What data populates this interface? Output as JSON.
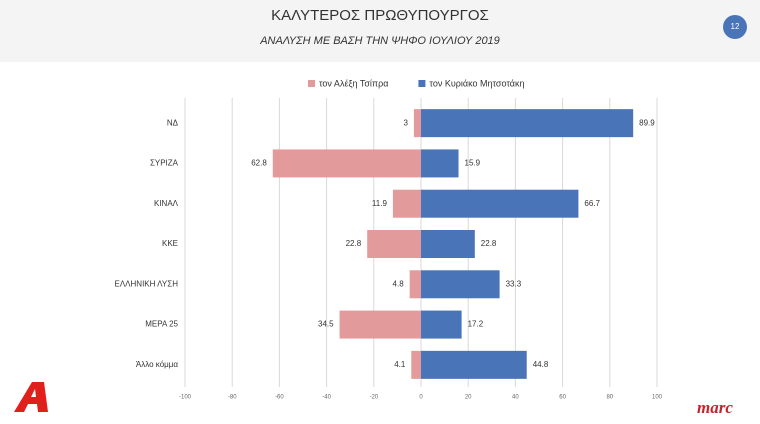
{
  "chart_data": {
    "type": "diverging-bar",
    "title": "ΚΑΛΥΤΕΡΟΣ ΠΡΩΘΥΠΟΥΡΓΟΣ",
    "subtitle": "ΑΝΑΛΥΣΗ ΜΕ ΒΑΣΗ ΤΗΝ ΨΗΦΟ ΙΟΥΛΙΟΥ 2019",
    "categories": [
      "ΝΔ",
      "ΣΥΡΙΖΑ",
      "ΚΙΝΑΛ",
      "ΚΚΕ",
      "ΕΛΛΗΝΙΚΗ ΛΥΣΗ",
      "ΜΕΡΑ 25",
      "Άλλο κόμμα"
    ],
    "series": [
      {
        "name": "τον Αλέξη Τσίπρα",
        "color": "#e39a9a",
        "values": [
          -3,
          -62.8,
          -11.9,
          -22.8,
          -4.8,
          -34.5,
          -4.1
        ],
        "value_labels": [
          "3",
          "62.8",
          "11.9",
          "22.8",
          "4.8",
          "34.5",
          "4.1"
        ]
      },
      {
        "name": "τον Κυριάκο Μητσοτάκη",
        "color": "#4a74b8",
        "values": [
          89.9,
          15.9,
          66.7,
          22.8,
          33.3,
          17.2,
          44.8
        ]
      }
    ],
    "xlim": [
      -100,
      100
    ],
    "xticks": [
      -100,
      -80,
      -60,
      -40,
      -20,
      0,
      20,
      40,
      60,
      80,
      100
    ],
    "grid": true,
    "legend": "top"
  },
  "slide_number": "12",
  "logo_text": "marc"
}
